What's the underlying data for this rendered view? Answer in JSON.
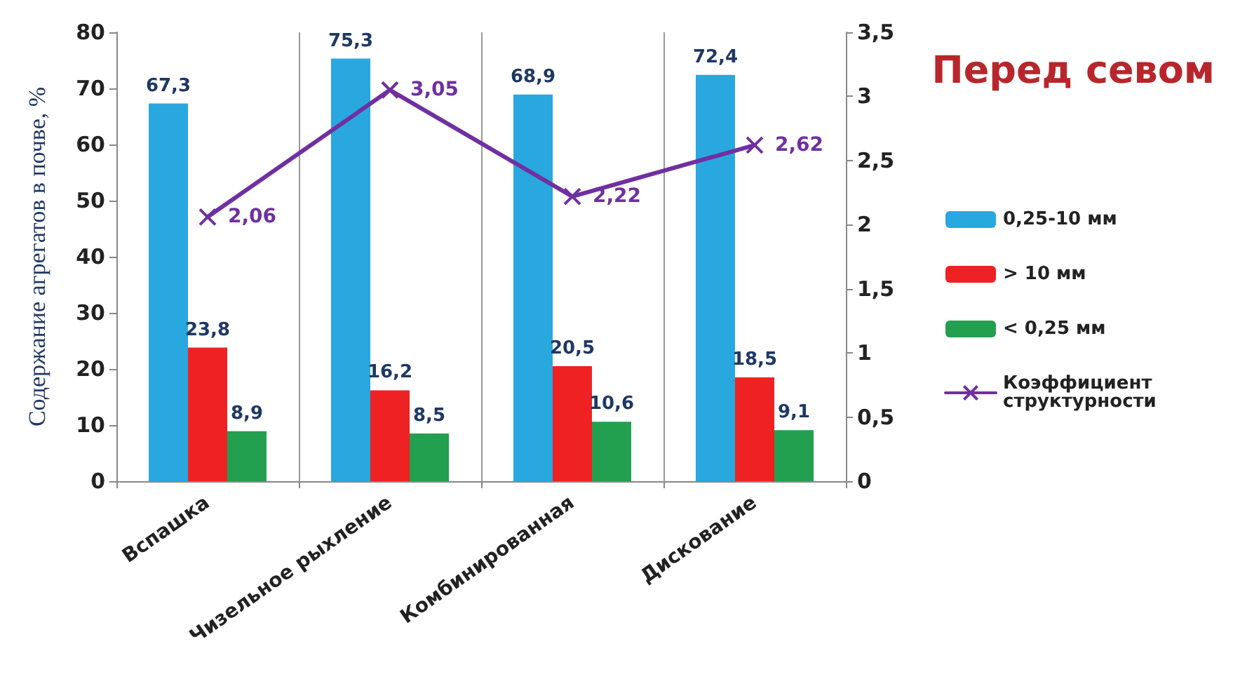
{
  "chart_data": {
    "type": "bar",
    "title": "Перед севом",
    "ylabel": "Содержание агрегатов в почве, %",
    "categories": [
      "Вспашка",
      "Чизельное рыхление",
      "Комбинированная",
      "Дискование"
    ],
    "series": [
      {
        "name": "0,25-10 мм",
        "color": "#29a8e0",
        "values": [
          67.3,
          75.3,
          68.9,
          72.4
        ],
        "value_labels": [
          "67,3",
          "75,3",
          "68,9",
          "72,4"
        ]
      },
      {
        "name": "> 10 мм",
        "color": "#ee2222",
        "values": [
          23.8,
          16.2,
          20.5,
          18.5
        ],
        "value_labels": [
          "23,8",
          "16,2",
          "20,5",
          "18,5"
        ]
      },
      {
        "name": "< 0,25 мм",
        "color": "#22a04f",
        "values": [
          8.9,
          8.5,
          10.6,
          9.1
        ],
        "value_labels": [
          "8,9",
          "8,5",
          "10,6",
          "9,1"
        ]
      },
      {
        "name": "Коэффициент структурности",
        "type": "line",
        "axis": "y2",
        "color": "#7030a0",
        "values": [
          2.06,
          3.05,
          2.22,
          2.62
        ],
        "value_labels": [
          "2,06",
          "3,05",
          "2,22",
          "2,62"
        ]
      }
    ],
    "ylim": [
      0,
      80
    ],
    "yticks": [
      0,
      10,
      20,
      30,
      40,
      50,
      60,
      70,
      80
    ],
    "y2lim": [
      0,
      3.5
    ],
    "y2ticks": [
      0,
      {
        "value": 0.5,
        "label": "0,5"
      },
      1,
      {
        "value": 1.5,
        "label": "1,5"
      },
      2,
      {
        "value": 2.5,
        "label": "2,5"
      },
      3,
      {
        "value": 3.5,
        "label": "3,5"
      }
    ],
    "grid": "x",
    "legend": "right",
    "marker": "cross"
  }
}
